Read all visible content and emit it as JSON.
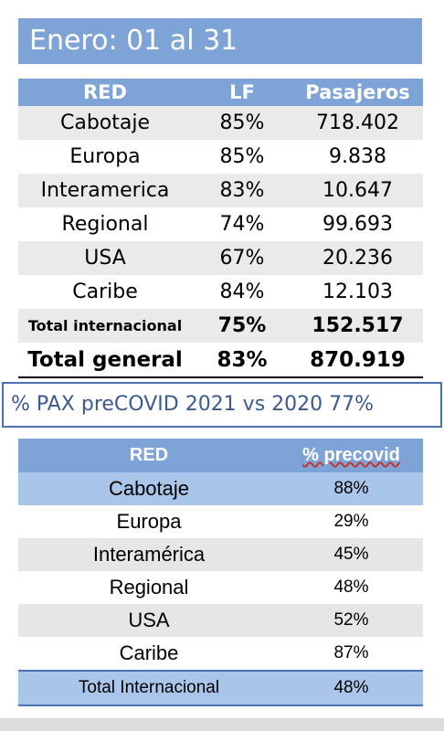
{
  "title": "Enero: 01 al 31",
  "table1": {
    "headers": [
      "RED",
      "LF",
      "Pasajeros"
    ],
    "rows": [
      {
        "red": "Cabotaje",
        "lf": "85%",
        "pax": "718.402"
      },
      {
        "red": "Europa",
        "lf": "85%",
        "pax": "9.838"
      },
      {
        "red": "Interamerica",
        "lf": "83%",
        "pax": "10.647"
      },
      {
        "red": "Regional",
        "lf": "74%",
        "pax": "99.693"
      },
      {
        "red": "USA",
        "lf": "67%",
        "pax": "20.236"
      },
      {
        "red": "Caribe",
        "lf": "84%",
        "pax": "12.103"
      },
      {
        "red": "Total internacional",
        "lf": "75%",
        "pax": "152.517"
      },
      {
        "red": "Total general",
        "lf": "83%",
        "pax": "870.919"
      }
    ]
  },
  "pax_caption": "% PAX preCOVID 2021 vs 2020 77%",
  "table2": {
    "headers": [
      "RED",
      "% precovid"
    ],
    "rows": [
      {
        "red": "Cabotaje",
        "pct": "88%"
      },
      {
        "red": "Europa",
        "pct": "29%"
      },
      {
        "red": "Interamérica",
        "pct": "45%"
      },
      {
        "red": "Regional",
        "pct": "48%"
      },
      {
        "red": "USA",
        "pct": "52%"
      },
      {
        "red": "Caribe",
        "pct": "87%"
      },
      {
        "red": "Total Internacional",
        "pct": "48%"
      }
    ]
  },
  "colors": {
    "header_blue": "#7ea3d6",
    "row_blue": "#a9c5ea",
    "row_gray": "#eaeaea",
    "caption_text": "#3b5a8f"
  }
}
